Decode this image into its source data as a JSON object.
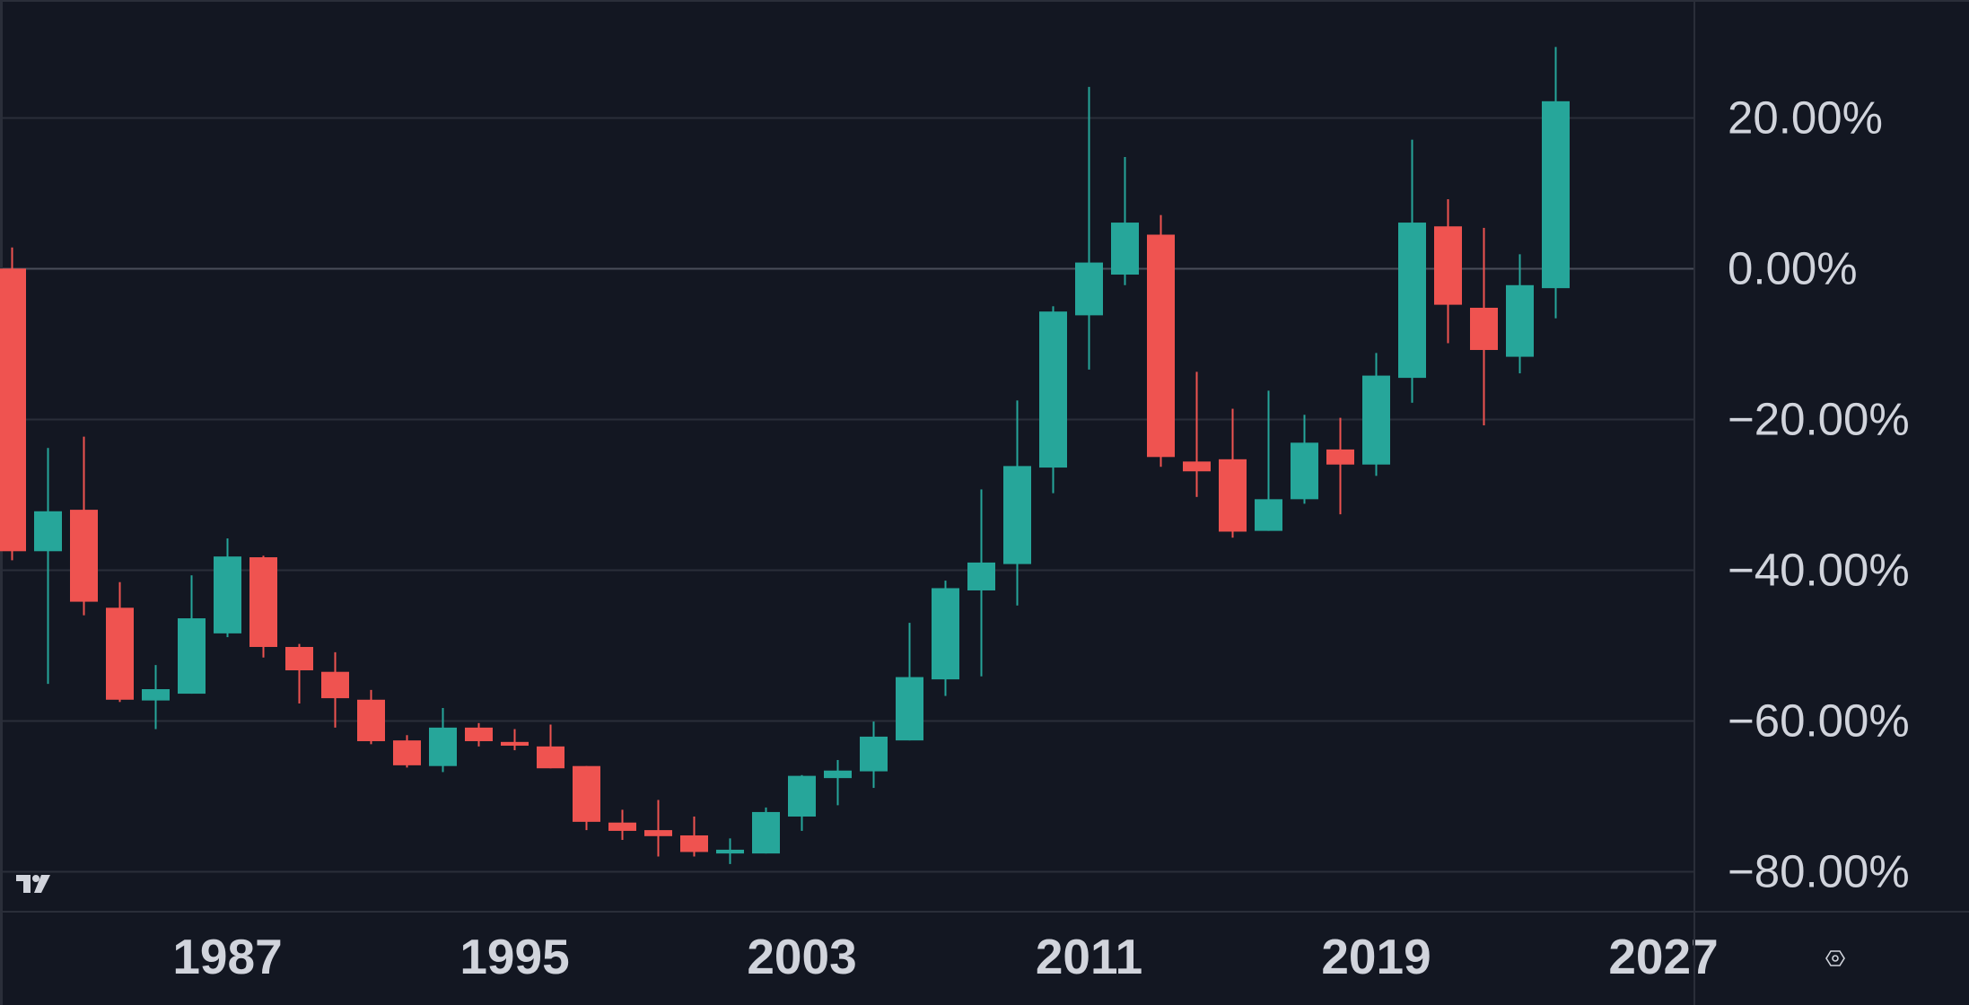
{
  "colors": {
    "background": "#131722",
    "grid": "#2a2e39",
    "zero_line": "#4a4e5a",
    "up": "#26a69a",
    "down": "#ef5350",
    "text": "#d1d4dc"
  },
  "price_axis": {
    "labels": [
      {
        "value": 20,
        "text": "20.00%"
      },
      {
        "value": 0,
        "text": "0.00%"
      },
      {
        "value": -20,
        "text": "−20.00%"
      },
      {
        "value": -40,
        "text": "−40.00%"
      },
      {
        "value": -60,
        "text": "−60.00%"
      },
      {
        "value": -80,
        "text": "−80.00%"
      }
    ]
  },
  "time_axis": {
    "labels": [
      {
        "year": 1987,
        "text": "1987"
      },
      {
        "year": 1995,
        "text": "1995"
      },
      {
        "year": 2003,
        "text": "2003"
      },
      {
        "year": 2011,
        "text": "2011"
      },
      {
        "year": 2019,
        "text": "2019"
      },
      {
        "year": 2027,
        "text": "2027"
      }
    ]
  },
  "icons": {
    "logo": "tradingview-logo-icon",
    "settings": "settings-hexagon-icon"
  },
  "chart_data": {
    "type": "candlestick",
    "title": "",
    "xlabel": "",
    "ylabel": "",
    "scale": "percentage",
    "interval": "1Y",
    "ylim": [
      -82,
      32
    ],
    "grid": true,
    "legend": "none",
    "first_year": 1981,
    "columns": [
      "year",
      "open",
      "high",
      "low",
      "close"
    ],
    "candles": [
      [
        1981,
        0.0,
        2.8,
        -38.7,
        -37.5
      ],
      [
        1982,
        -37.5,
        -23.8,
        -55.1,
        -32.2
      ],
      [
        1983,
        -32.0,
        -22.3,
        -46.0,
        -44.2
      ],
      [
        1984,
        -45.0,
        -41.6,
        -57.5,
        -57.2
      ],
      [
        1985,
        -57.3,
        -52.6,
        -61.1,
        -55.8
      ],
      [
        1986,
        -56.4,
        -40.7,
        -56.4,
        -46.4
      ],
      [
        1987,
        -48.4,
        -35.8,
        -48.9,
        -38.2
      ],
      [
        1988,
        -38.3,
        -38.1,
        -51.6,
        -50.2
      ],
      [
        1989,
        -50.2,
        -49.8,
        -57.7,
        -53.3
      ],
      [
        1990,
        -53.5,
        -50.9,
        -60.9,
        -57.0
      ],
      [
        1991,
        -57.2,
        -55.9,
        -63.1,
        -62.7
      ],
      [
        1992,
        -62.6,
        -61.9,
        -66.2,
        -65.9
      ],
      [
        1993,
        -66.0,
        -58.3,
        -66.8,
        -60.9
      ],
      [
        1994,
        -60.9,
        -60.3,
        -63.4,
        -62.7
      ],
      [
        1995,
        -62.8,
        -61.1,
        -63.9,
        -63.3
      ],
      [
        1996,
        -63.4,
        -60.5,
        -66.3,
        -66.3
      ],
      [
        1997,
        -66.0,
        -66.0,
        -74.5,
        -73.4
      ],
      [
        1998,
        -73.5,
        -71.8,
        -75.8,
        -74.6
      ],
      [
        1999,
        -74.5,
        -70.5,
        -78.0,
        -75.3
      ],
      [
        2000,
        -75.2,
        -72.7,
        -78.0,
        -77.4
      ],
      [
        2001,
        -77.6,
        -75.6,
        -79.0,
        -77.1
      ],
      [
        2002,
        -77.6,
        -71.5,
        -77.6,
        -72.1
      ],
      [
        2003,
        -72.7,
        -67.2,
        -74.6,
        -67.3
      ],
      [
        2004,
        -67.6,
        -65.2,
        -71.2,
        -66.6
      ],
      [
        2005,
        -66.7,
        -60.1,
        -68.9,
        -62.1
      ],
      [
        2006,
        -62.6,
        -47.0,
        -62.6,
        -54.2
      ],
      [
        2007,
        -54.5,
        -41.4,
        -56.7,
        -42.4
      ],
      [
        2008,
        -42.7,
        -29.3,
        -54.1,
        -39.0
      ],
      [
        2009,
        -39.2,
        -17.5,
        -44.7,
        -26.2
      ],
      [
        2010,
        -26.4,
        -5.0,
        -29.8,
        -5.7
      ],
      [
        2011,
        -6.2,
        24.1,
        -13.4,
        0.8
      ],
      [
        2012,
        -0.8,
        14.8,
        -2.2,
        6.1
      ],
      [
        2013,
        4.5,
        7.1,
        -26.3,
        -25.0
      ],
      [
        2014,
        -25.6,
        -13.7,
        -30.3,
        -26.9
      ],
      [
        2015,
        -25.3,
        -18.6,
        -35.7,
        -34.9
      ],
      [
        2016,
        -34.8,
        -16.2,
        -34.8,
        -30.6
      ],
      [
        2017,
        -30.6,
        -19.4,
        -31.2,
        -23.1
      ],
      [
        2018,
        -24.0,
        -19.8,
        -32.6,
        -26.0
      ],
      [
        2019,
        -26.0,
        -11.2,
        -27.5,
        -14.2
      ],
      [
        2020,
        -14.5,
        17.1,
        -17.8,
        6.1
      ],
      [
        2021,
        5.6,
        9.2,
        -9.9,
        -4.8
      ],
      [
        2022,
        -5.2,
        5.4,
        -20.8,
        -10.8
      ],
      [
        2023,
        -11.7,
        1.9,
        -13.9,
        -2.2
      ],
      [
        2024,
        -2.6,
        29.4,
        -6.6,
        22.2
      ]
    ]
  }
}
